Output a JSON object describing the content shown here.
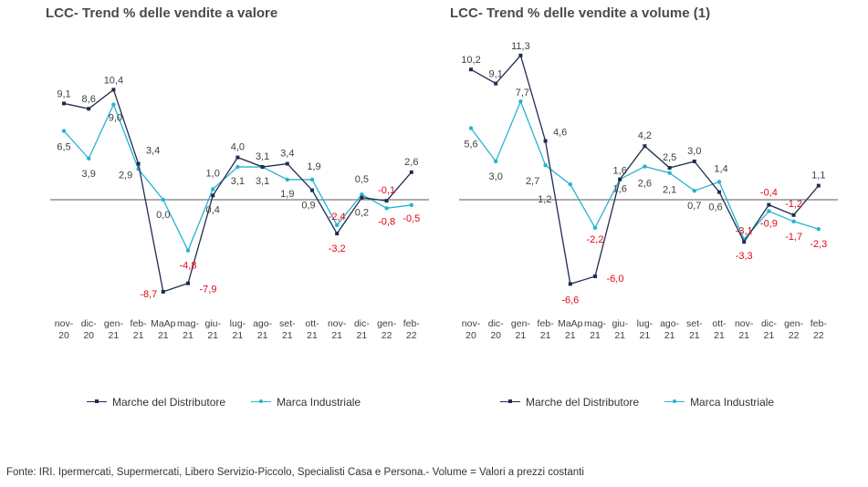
{
  "colors": {
    "mdd": "#1f2d4e",
    "mi": "#26b3d3",
    "neg": "#e30613",
    "label": "#404040",
    "axis": "#595959"
  },
  "source": "Fonte: IRI. Ipermercati, Supermercati, Libero Servizio-Piccolo, Specialisti Casa e Persona.-  Volume = Valori a prezzi  costanti",
  "chart_data": [
    {
      "type": "line",
      "title": "LCC- Trend % delle vendite a valore",
      "categories": [
        [
          "nov-",
          "20"
        ],
        [
          "dic-",
          "20"
        ],
        [
          "gen-",
          "21"
        ],
        [
          "feb-",
          "21"
        ],
        [
          "MaAp",
          "21"
        ],
        [
          "mag-",
          "21"
        ],
        [
          "giu-",
          "21"
        ],
        [
          "lug-",
          "21"
        ],
        [
          "ago-",
          "21"
        ],
        [
          "set-",
          "21"
        ],
        [
          "ott-",
          "21"
        ],
        [
          "nov-",
          "21"
        ],
        [
          "dic-",
          "21"
        ],
        [
          "gen-",
          "22"
        ],
        [
          "feb-",
          "22"
        ]
      ],
      "series": [
        {
          "name": "Marche del Distributore",
          "values": [
            9.1,
            8.6,
            10.4,
            3.4,
            -8.7,
            -7.9,
            0.4,
            4.0,
            3.1,
            3.4,
            0.9,
            -3.2,
            0.2,
            -0.1,
            2.6
          ]
        },
        {
          "name": "Marca Industriale",
          "values": [
            6.5,
            3.9,
            9.0,
            2.9,
            0.0,
            -4.8,
            1.0,
            3.1,
            3.1,
            1.9,
            1.9,
            -2.4,
            0.5,
            -0.8,
            -0.5
          ]
        }
      ],
      "labels": [
        [
          "9,1",
          "8,6",
          "10,4",
          "3,4",
          "-8,7",
          "-7,9",
          "0,4",
          "4,0",
          "3,1",
          "3,4",
          "0,9",
          "-3,2",
          "0,2",
          "-0,1",
          "2,6"
        ],
        [
          "6,5",
          "3,9",
          "9,0",
          "2,9",
          "0,0",
          "-4,8",
          "1,0",
          "3,1",
          "3,1",
          "1,9",
          "1,9",
          "-2,4",
          "0,5",
          "-0,8",
          "-0,5"
        ]
      ],
      "ylim": [
        -10,
        13
      ],
      "legend": "bottom"
    },
    {
      "type": "line",
      "title": "LCC- Trend % delle vendite a volume (1)",
      "categories": [
        [
          "nov-",
          "20"
        ],
        [
          "dic-",
          "20"
        ],
        [
          "gen-",
          "21"
        ],
        [
          "feb-",
          "21"
        ],
        [
          "MaAp",
          "21"
        ],
        [
          "mag-",
          "21"
        ],
        [
          "giu-",
          "21"
        ],
        [
          "lug-",
          "21"
        ],
        [
          "ago-",
          "21"
        ],
        [
          "set-",
          "21"
        ],
        [
          "ott-",
          "21"
        ],
        [
          "nov-",
          "21"
        ],
        [
          "dic-",
          "21"
        ],
        [
          "gen-",
          "22"
        ],
        [
          "feb-",
          "22"
        ]
      ],
      "series": [
        {
          "name": "Marche del Distributore",
          "values": [
            10.2,
            9.1,
            11.3,
            4.6,
            -6.6,
            -6.0,
            1.6,
            4.2,
            2.5,
            3.0,
            0.6,
            -3.3,
            -0.4,
            -1.2,
            1.1
          ]
        },
        {
          "name": "Marca Industriale",
          "values": [
            5.6,
            3.0,
            7.7,
            2.7,
            1.2,
            -2.2,
            1.6,
            2.6,
            2.1,
            0.7,
            1.4,
            -3.1,
            -0.9,
            -1.7,
            -2.3
          ]
        }
      ],
      "labels": [
        [
          "10,2",
          "9,1",
          "11,3",
          "4,6",
          "-6,6",
          "-6,0",
          "1,6",
          "4,2",
          "2,5",
          "3,0",
          "0,6",
          "-3,3",
          "-0,4",
          "-1,2",
          "1,1"
        ],
        [
          "5,6",
          "3,0",
          "7,7",
          "2,7",
          "1,2",
          "-2,2",
          "1,6",
          "2,6",
          "2,1",
          "0,7",
          "1,4",
          "-3,1",
          "-0,9",
          "-1,7",
          "-2,3"
        ]
      ],
      "ylim": [
        -8.5,
        14
      ],
      "legend": "bottom"
    }
  ]
}
